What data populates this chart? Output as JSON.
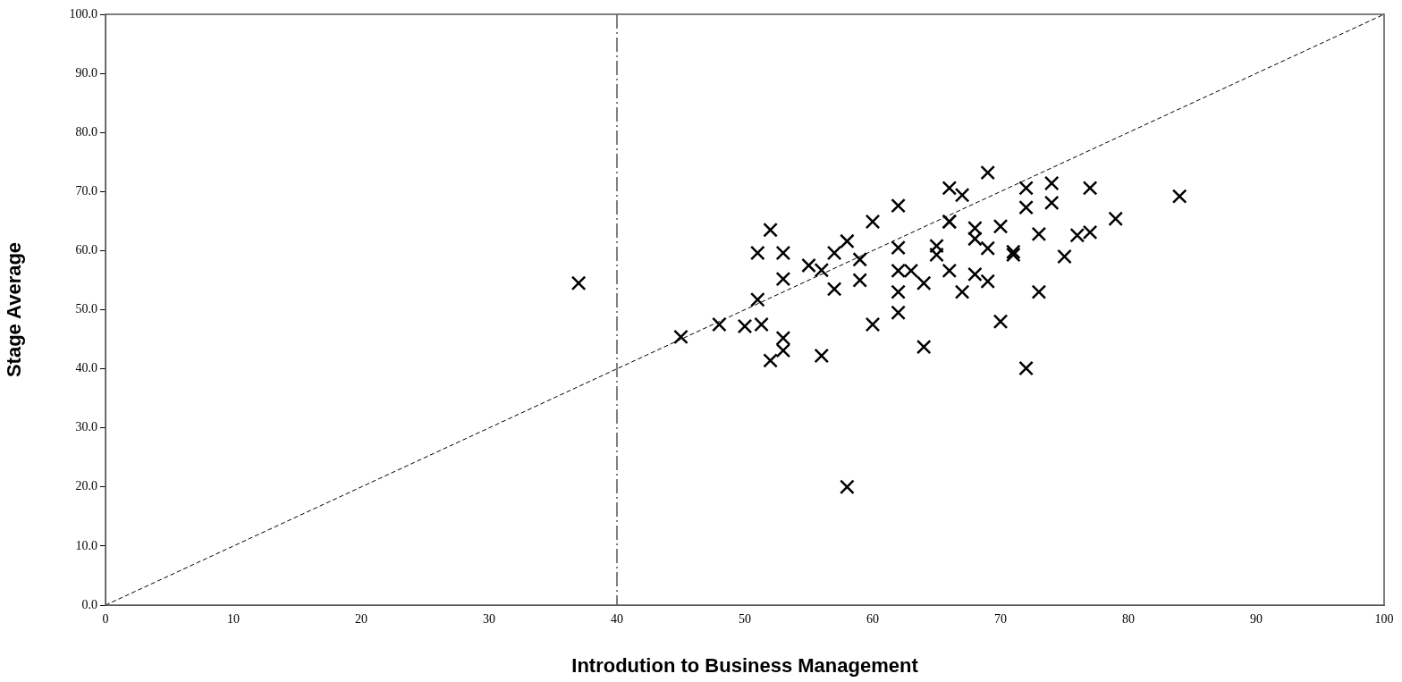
{
  "chart_data": {
    "type": "scatter",
    "xlabel": "Introdution to Business Management",
    "ylabel": "Stage Average",
    "series": [
      {
        "color": "#000000",
        "marker": "cross",
        "x": [
          37,
          45,
          48,
          50,
          51.3,
          51,
          51,
          52,
          52,
          53,
          53,
          53,
          53,
          55,
          56,
          56,
          57,
          57,
          58,
          58,
          59,
          59,
          60,
          60,
          62,
          62,
          62,
          62,
          62,
          63,
          64,
          64,
          65,
          65,
          66,
          66,
          66,
          66,
          67,
          67,
          68,
          68,
          68,
          69,
          69,
          69,
          70,
          70,
          71,
          71,
          72,
          72,
          72,
          73,
          73,
          74,
          74,
          75,
          76,
          77,
          77,
          79,
          84
        ],
        "values": [
          54.5,
          45.4,
          47.5,
          47.2,
          47.5,
          51.7,
          59.6,
          63.5,
          41.4,
          59.6,
          55.2,
          45.2,
          43.1,
          57.5,
          56.7,
          42.2,
          59.6,
          53.5,
          61.6,
          20,
          58.5,
          55,
          64.9,
          47.5,
          67.6,
          60.5,
          53,
          49.5,
          56.6,
          56.6,
          54.5,
          43.7,
          60.8,
          59.3,
          70.6,
          64.9,
          56.6,
          64.9,
          69.4,
          53,
          63.8,
          62,
          56,
          73.2,
          60.4,
          54.8,
          64.1,
          48,
          59.8,
          59.3,
          70.6,
          67.3,
          40.1,
          62.8,
          53,
          71.4,
          68.1,
          59,
          62.6,
          70.6,
          63.1,
          65.4,
          69.2
        ]
      },
      {
        "type": "line",
        "color": "#000000",
        "marker": "none",
        "line_style": "dashed",
        "x": [
          0,
          100
        ],
        "values": [
          0,
          100
        ]
      }
    ],
    "xlim": [
      0,
      100
    ],
    "xticks": [
      0,
      10,
      20,
      30,
      40,
      50,
      60,
      70,
      80,
      90,
      100
    ],
    "ylim": [
      0,
      100
    ],
    "yticks": [
      {
        "value": 0,
        "label": "0.0"
      },
      {
        "value": 10,
        "label": "10.0"
      },
      {
        "value": 20,
        "label": "20.0"
      },
      {
        "value": 30,
        "label": "30.0"
      },
      {
        "value": 40,
        "label": "40.0"
      },
      {
        "value": 50,
        "label": "50.0"
      },
      {
        "value": 60,
        "label": "60.0"
      },
      {
        "value": 70,
        "label": "70.0"
      },
      {
        "value": 80,
        "label": "80.0"
      },
      {
        "value": 90,
        "label": "90.0"
      },
      {
        "value": 100,
        "label": "100.0"
      }
    ],
    "ref_lines": [
      {
        "axis": "x",
        "value": 40,
        "color": "#000000",
        "line_style": "dashed"
      }
    ],
    "grid": false,
    "legend": false
  }
}
